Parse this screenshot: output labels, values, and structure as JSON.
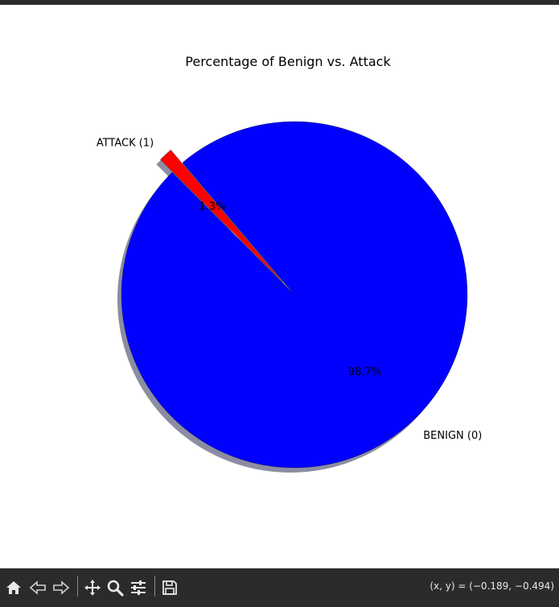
{
  "chart_data": {
    "type": "pie",
    "title": "Percentage of Benign vs. Attack",
    "labels": [
      "BENIGN (0)",
      "ATTACK (1)"
    ],
    "values": [
      98.7,
      1.3
    ],
    "percent_labels": [
      "98.7%",
      "1.3%"
    ],
    "colors": [
      "#0000ff",
      "#ff0000"
    ],
    "explode": [
      0,
      0.1
    ],
    "shadow": true,
    "edgecolor": "#000000"
  },
  "toolbar": {
    "coordinates": "(x, y) = (−0.189, −0.494)",
    "buttons": [
      "home-icon",
      "back-icon",
      "forward-icon",
      "pan-icon",
      "zoom-icon",
      "configure-subplots-icon",
      "save-icon"
    ]
  }
}
